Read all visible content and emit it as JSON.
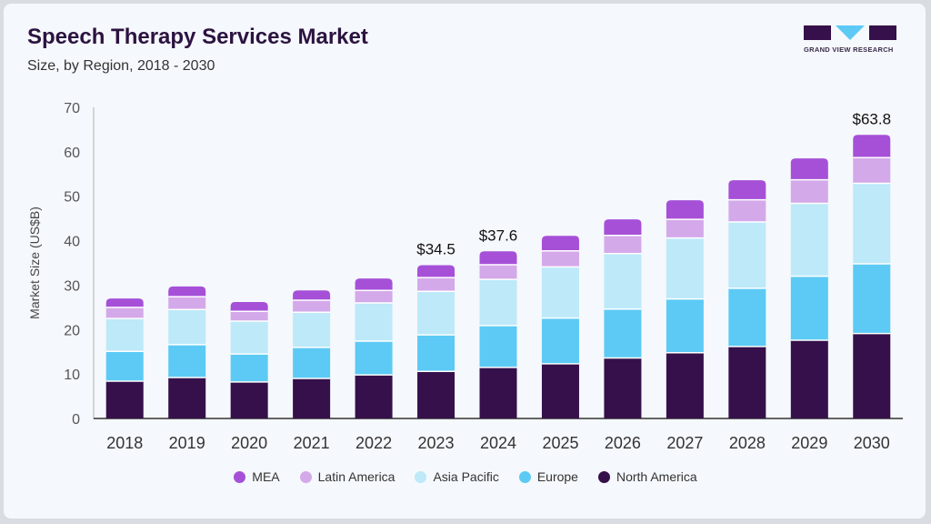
{
  "header": {
    "title": "Speech Therapy Services Market",
    "subtitle": "Size, by Region, 2018 - 2030"
  },
  "logo": {
    "text": "GRAND VIEW RESEARCH"
  },
  "chart_data": {
    "type": "bar",
    "stacked": true,
    "title": "Speech Therapy Services Market",
    "subtitle": "Size, by Region, 2018 - 2030",
    "xlabel": "",
    "ylabel": "Market Size (US$B)",
    "ylim": [
      0,
      70
    ],
    "yticks": [
      0,
      10,
      20,
      30,
      40,
      50,
      60,
      70
    ],
    "grid": false,
    "legend_position": "bottom",
    "categories": [
      "2018",
      "2019",
      "2020",
      "2021",
      "2022",
      "2023",
      "2024",
      "2025",
      "2026",
      "2027",
      "2028",
      "2029",
      "2030"
    ],
    "series": [
      {
        "name": "North America",
        "color": "#35104a",
        "values": [
          8.4,
          9.2,
          8.2,
          9.0,
          9.8,
          10.6,
          11.5,
          12.3,
          13.6,
          14.8,
          16.2,
          17.6,
          19.1
        ]
      },
      {
        "name": "Europe",
        "color": "#5ccaf4",
        "values": [
          6.7,
          7.4,
          6.3,
          7.0,
          7.6,
          8.2,
          9.4,
          10.3,
          11.0,
          12.1,
          13.1,
          14.4,
          15.7
        ]
      },
      {
        "name": "Asia Pacific",
        "color": "#bde9f9",
        "values": [
          7.4,
          7.9,
          7.4,
          7.9,
          8.6,
          9.8,
          10.4,
          11.5,
          12.5,
          13.7,
          14.9,
          16.4,
          18.1
        ]
      },
      {
        "name": "Latin America",
        "color": "#d4a9ea",
        "values": [
          2.5,
          2.9,
          2.2,
          2.7,
          2.8,
          3.1,
          3.3,
          3.6,
          4.1,
          4.2,
          5.0,
          5.3,
          5.8
        ]
      },
      {
        "name": "MEA",
        "color": "#a650d8",
        "values": [
          2.0,
          2.3,
          2.1,
          2.2,
          2.7,
          2.8,
          3.0,
          3.4,
          3.6,
          4.3,
          4.4,
          4.8,
          5.1
        ]
      }
    ],
    "annotations": [
      {
        "category": "2023",
        "label": "$34.5"
      },
      {
        "category": "2024",
        "label": "$37.6"
      },
      {
        "category": "2030",
        "label": "$63.8"
      }
    ],
    "legend_order": [
      "MEA",
      "Latin America",
      "Asia Pacific",
      "Europe",
      "North America"
    ]
  }
}
